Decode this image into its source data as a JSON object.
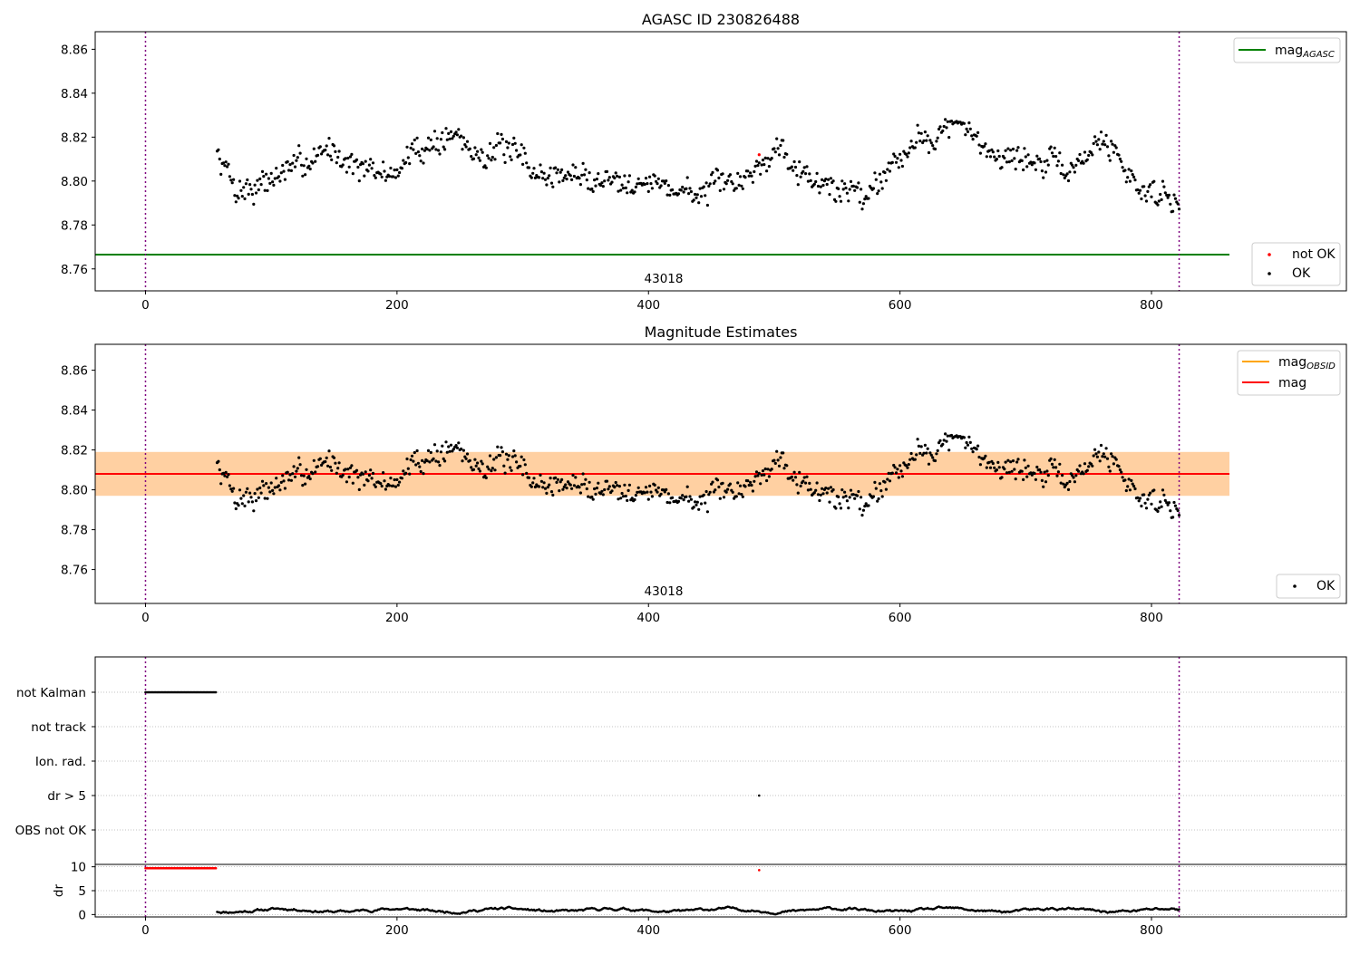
{
  "chart_data": [
    {
      "type": "scatter",
      "title": "AGASC ID 230826488",
      "xlim": [
        -40,
        955
      ],
      "ylim": [
        8.75,
        8.868
      ],
      "xticks": [
        0,
        200,
        400,
        600,
        800
      ],
      "yticks": [
        8.76,
        8.78,
        8.8,
        8.82,
        8.84,
        8.86
      ],
      "vlines": [
        0,
        822
      ],
      "hline": {
        "name": "mag_AGASC",
        "y": 8.7665,
        "x": [
          -40,
          862
        ],
        "color": "#008000"
      },
      "annotation": {
        "text": "43018",
        "x": 411
      },
      "series": [
        {
          "name": "not OK",
          "color": "#ff0000",
          "points": [
            [
              488,
              8.812
            ]
          ]
        },
        {
          "name": "OK",
          "color": "#000000",
          "generated": {
            "x_start": 57,
            "x_end": 822,
            "step": 1,
            "trend": [
              [
                57,
                8.812
              ],
              [
                65,
                8.805
              ],
              [
                72,
                8.796
              ],
              [
                88,
                8.797
              ],
              [
                100,
                8.801
              ],
              [
                125,
                8.808
              ],
              [
                145,
                8.815
              ],
              [
                160,
                8.81
              ],
              [
                180,
                8.803
              ],
              [
                200,
                8.804
              ],
              [
                210,
                8.812
              ],
              [
                230,
                8.818
              ],
              [
                250,
                8.821
              ],
              [
                260,
                8.812
              ],
              [
                280,
                8.815
              ],
              [
                300,
                8.81
              ],
              [
                315,
                8.802
              ],
              [
                340,
                8.803
              ],
              [
                360,
                8.8
              ],
              [
                380,
                8.802
              ],
              [
                400,
                8.799
              ],
              [
                420,
                8.797
              ],
              [
                440,
                8.794
              ],
              [
                460,
                8.798
              ],
              [
                480,
                8.803
              ],
              [
                495,
                8.81
              ],
              [
                505,
                8.818
              ],
              [
                520,
                8.806
              ],
              [
                540,
                8.797
              ],
              [
                560,
                8.796
              ],
              [
                575,
                8.794
              ],
              [
                590,
                8.807
              ],
              [
                610,
                8.817
              ],
              [
                630,
                8.822
              ],
              [
                645,
                8.826
              ],
              [
                660,
                8.818
              ],
              [
                680,
                8.812
              ],
              [
                700,
                8.81
              ],
              [
                720,
                8.807
              ],
              [
                740,
                8.805
              ],
              [
                755,
                8.818
              ],
              [
                770,
                8.815
              ],
              [
                790,
                8.796
              ],
              [
                805,
                8.795
              ],
              [
                822,
                8.792
              ]
            ],
            "noise": 0.008,
            "seed": 7
          }
        }
      ],
      "legends": [
        {
          "position": "upper-right",
          "entries": [
            {
              "label": "mag",
              "sub": "AGASC",
              "kind": "line",
              "color": "#008000"
            }
          ]
        },
        {
          "position": "lower-right",
          "entries": [
            {
              "label": "not OK",
              "kind": "dot",
              "color": "#ff0000"
            },
            {
              "label": "OK",
              "kind": "dot",
              "color": "#000000"
            }
          ]
        }
      ]
    },
    {
      "type": "scatter",
      "title": "Magnitude Estimates",
      "xlim": [
        -40,
        955
      ],
      "ylim": [
        8.743,
        8.873
      ],
      "xticks": [
        0,
        200,
        400,
        600,
        800
      ],
      "yticks": [
        8.76,
        8.78,
        8.8,
        8.82,
        8.84,
        8.86
      ],
      "vlines": [
        0,
        822
      ],
      "bands": [
        {
          "x": [
            -40,
            862
          ],
          "y": [
            8.797,
            8.819
          ],
          "color": "#ffc0cb",
          "opacity": 0.45
        },
        {
          "x": [
            -40,
            862
          ],
          "y": [
            8.797,
            8.819
          ],
          "color": "#ffa500",
          "opacity": 0.3
        }
      ],
      "hlines": [
        {
          "name": "mag_OBSID",
          "y": 8.808,
          "x": [
            -40,
            862
          ],
          "color": "#ffa500"
        },
        {
          "name": "mag",
          "y": 8.808,
          "x": [
            -40,
            862
          ],
          "color": "#ff0000"
        }
      ],
      "annotation": {
        "text": "43018",
        "x": 411
      },
      "series": [
        {
          "name": "OK",
          "color": "#000000",
          "same_as_panel_0": true
        }
      ],
      "legends": [
        {
          "position": "upper-right",
          "entries": [
            {
              "label": "mag",
              "sub": "OBSID",
              "kind": "line",
              "color": "#ffa500"
            },
            {
              "label": "mag",
              "kind": "line",
              "color": "#ff0000"
            }
          ]
        },
        {
          "position": "lower-right",
          "entries": [
            {
              "label": "OK",
              "kind": "dot",
              "color": "#000000"
            }
          ]
        }
      ]
    },
    {
      "type": "scatter",
      "title": "",
      "xlim": [
        -40,
        955
      ],
      "xticks": [
        0,
        200,
        400,
        600,
        800
      ],
      "vlines": [
        0,
        822
      ],
      "categories": [
        "not Kalman",
        "not track",
        "Ion. rad.",
        "dr > 5",
        "OBS not OK"
      ],
      "flags": [
        {
          "category": "not Kalman",
          "x_start": 0,
          "x_end": 56
        },
        {
          "category": "dr > 5",
          "x_single": 488
        }
      ],
      "dr_panel": {
        "ylabel": "dr",
        "ylim": [
          -0.5,
          10.5
        ],
        "yticks": [
          0,
          5,
          10
        ],
        "red_points": {
          "x_start": 0,
          "x_end": 56,
          "y": 9.7,
          "extra": [
            [
              488,
              9.3
            ]
          ]
        },
        "black_points": {
          "x_start": 57,
          "x_end": 822,
          "base": 0.9,
          "amp": 0.6
        }
      }
    }
  ]
}
